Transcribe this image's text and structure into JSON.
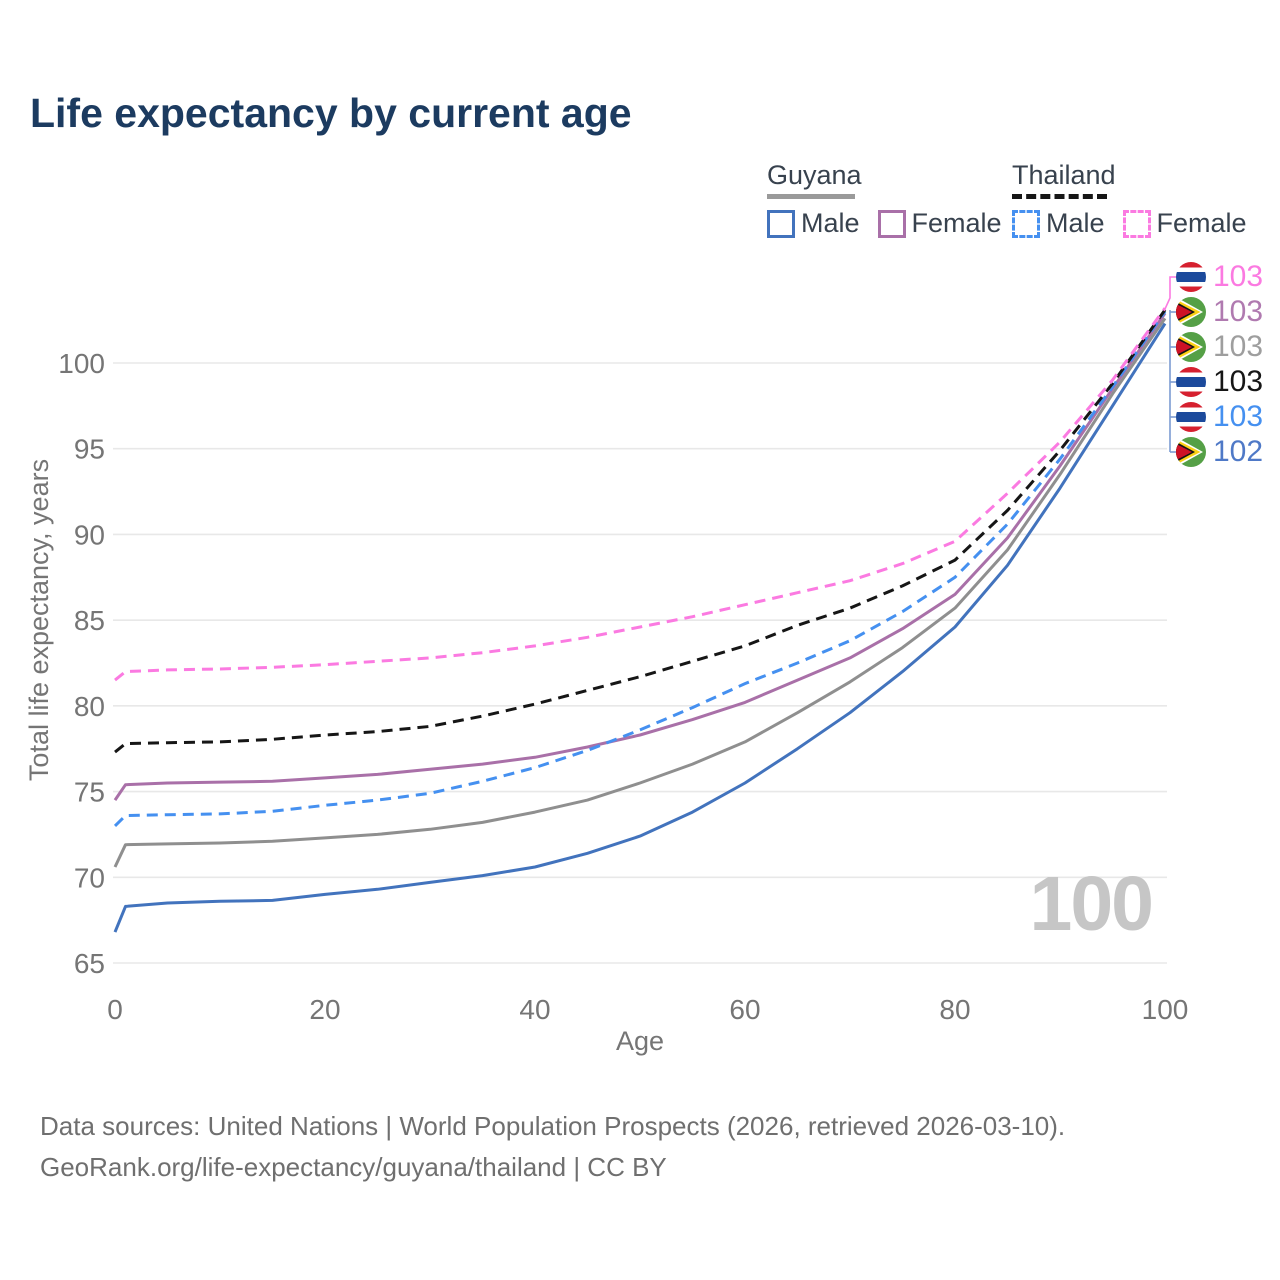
{
  "title": "Life expectancy by current age",
  "legend": {
    "groups": [
      {
        "country": "Guyana",
        "style": "solid",
        "items": [
          {
            "label": "Male",
            "series": "guyana_male"
          },
          {
            "label": "Female",
            "series": "guyana_female"
          }
        ]
      },
      {
        "country": "Thailand",
        "style": "dashed",
        "items": [
          {
            "label": "Male",
            "series": "thailand_male"
          },
          {
            "label": "Female",
            "series": "thailand_female"
          }
        ]
      }
    ]
  },
  "colors": {
    "guyana_male": "#4273bd",
    "guyana_female": "#a970a8",
    "guyana_both": "#9a9a9a",
    "thailand_male": "#4590f0",
    "thailand_female": "#fb7ae1",
    "thailand_both": "#161616",
    "title": "#1c3b60",
    "axis_text": "#757575",
    "grid": "#e8e8e8",
    "watermark": "#c6c6c6",
    "leader": "#7b9bd2"
  },
  "chart_data": {
    "type": "line",
    "title": "Life expectancy by current age",
    "xlabel": "Age",
    "ylabel": "Total life expectancy, years",
    "x_ticks": [
      0,
      20,
      40,
      60,
      80,
      100
    ],
    "y_ticks": [
      65,
      70,
      75,
      80,
      85,
      90,
      95,
      100
    ],
    "xlim": [
      0,
      100
    ],
    "ylim": [
      65,
      104
    ],
    "grid": "horizontal",
    "legend_position": "top-right",
    "ages": [
      0,
      1,
      5,
      10,
      15,
      20,
      25,
      30,
      35,
      40,
      45,
      50,
      55,
      60,
      65,
      70,
      75,
      80,
      85,
      90,
      95,
      100
    ],
    "series": [
      {
        "id": "guyana_male",
        "name": "Guyana Male",
        "style": "solid",
        "color": "#4273bd",
        "values": [
          66.8,
          68.3,
          68.5,
          68.6,
          68.65,
          69.0,
          69.3,
          69.7,
          70.1,
          70.6,
          71.4,
          72.4,
          73.8,
          75.5,
          77.5,
          79.6,
          82.0,
          84.6,
          88.2,
          92.7,
          97.5,
          102.3
        ]
      },
      {
        "id": "guyana_both",
        "name": "Guyana Both sexes",
        "style": "solid",
        "color": "#8f8f8f",
        "values": [
          70.6,
          71.9,
          71.95,
          72.0,
          72.1,
          72.3,
          72.5,
          72.8,
          73.2,
          73.8,
          74.5,
          75.5,
          76.6,
          77.9,
          79.6,
          81.4,
          83.4,
          85.7,
          89.1,
          93.5,
          98.2,
          102.6
        ]
      },
      {
        "id": "guyana_female",
        "name": "Guyana Female",
        "style": "solid",
        "color": "#a970a8",
        "values": [
          74.5,
          75.4,
          75.5,
          75.55,
          75.6,
          75.8,
          76.0,
          76.3,
          76.6,
          77.0,
          77.6,
          78.3,
          79.2,
          80.2,
          81.5,
          82.8,
          84.5,
          86.5,
          89.8,
          94.0,
          98.5,
          102.9
        ]
      },
      {
        "id": "thailand_male",
        "name": "Thailand Male",
        "style": "dashed",
        "color": "#4590f0",
        "values": [
          73.0,
          73.6,
          73.65,
          73.7,
          73.85,
          74.2,
          74.5,
          74.9,
          75.6,
          76.4,
          77.4,
          78.6,
          79.9,
          81.3,
          82.5,
          83.8,
          85.5,
          87.5,
          90.6,
          94.4,
          98.6,
          103.0
        ]
      },
      {
        "id": "thailand_both",
        "name": "Thailand Both sexes",
        "style": "dashed",
        "color": "#161616",
        "values": [
          77.3,
          77.8,
          77.85,
          77.9,
          78.05,
          78.3,
          78.5,
          78.8,
          79.4,
          80.1,
          80.9,
          81.7,
          82.6,
          83.5,
          84.7,
          85.7,
          87.0,
          88.5,
          91.4,
          94.9,
          98.8,
          103.1
        ]
      },
      {
        "id": "thailand_female",
        "name": "Thailand Female",
        "style": "dashed",
        "color": "#fb7ae1",
        "values": [
          81.5,
          82.0,
          82.1,
          82.15,
          82.25,
          82.4,
          82.6,
          82.8,
          83.1,
          83.5,
          84.0,
          84.6,
          85.2,
          85.9,
          86.6,
          87.3,
          88.3,
          89.6,
          92.4,
          95.4,
          99.0,
          103.2
        ]
      }
    ]
  },
  "end_labels": [
    {
      "flag": "thailand",
      "value": "103",
      "color": "#fb7ae1"
    },
    {
      "flag": "guyana",
      "value": "103",
      "color": "#b07ab0"
    },
    {
      "flag": "guyana",
      "value": "103",
      "color": "#9e9e9e"
    },
    {
      "flag": "thailand",
      "value": "103",
      "color": "#161616"
    },
    {
      "flag": "thailand",
      "value": "103",
      "color": "#4590f0"
    },
    {
      "flag": "guyana",
      "value": "102",
      "color": "#4f79c7"
    }
  ],
  "watermark": "100",
  "footer": {
    "line1": "Data sources: United Nations | World Population Prospects (2026, retrieved 2026-03-10).",
    "line2": "GeoRank.org/life-expectancy/guyana/thailand | CC BY"
  }
}
